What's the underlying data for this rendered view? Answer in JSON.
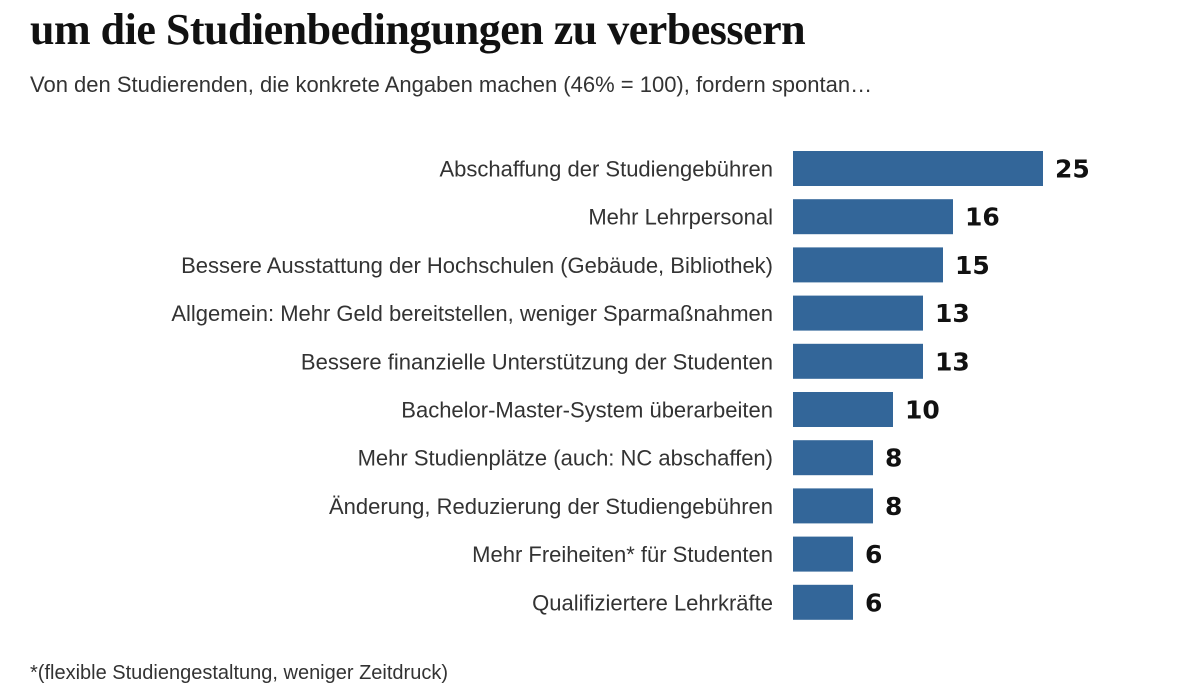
{
  "title": "um die Studienbedingungen zu verbessern",
  "subtitle": "Von den Studierenden, die konkrete Angaben machen (46% = 100), fordern spontan…",
  "footnote": "*(flexible Studiengestaltung, weniger Zeitdruck)",
  "chart_data": {
    "type": "bar",
    "orientation": "horizontal",
    "categories": [
      "Abschaffung der Studiengebühren",
      "Mehr Lehrpersonal",
      "Bessere Ausstattung der Hochschulen (Gebäude, Bibliothek)",
      "Allgemein: Mehr Geld bereitstellen, weniger Sparmaßnahmen",
      "Bessere finanzielle Unterstützung der Studenten",
      "Bachelor-Master-System überarbeiten",
      "Mehr Studienplätze (auch: NC abschaffen)",
      "Änderung, Reduzierung der Studiengebühren",
      "Mehr Freiheiten* für Studenten",
      "Qualifiziertere Lehrkräfte"
    ],
    "values": [
      25,
      16,
      15,
      13,
      13,
      10,
      8,
      8,
      6,
      6
    ],
    "bar_color": "#336699",
    "grid": false
  }
}
